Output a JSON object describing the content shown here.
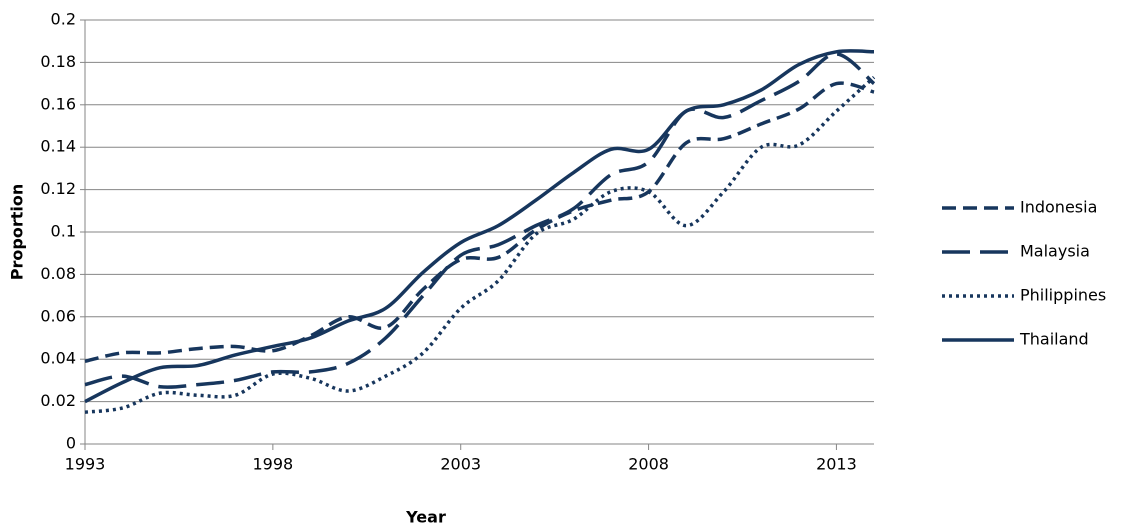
{
  "chart_data": {
    "type": "line",
    "x_label": "Year",
    "y_label": "Proportion",
    "x": [
      1993,
      1994,
      1995,
      1996,
      1997,
      1998,
      1999,
      2000,
      2001,
      2002,
      2003,
      2004,
      2005,
      2006,
      2007,
      2008,
      2009,
      2010,
      2011,
      2012,
      2013,
      2014
    ],
    "series": [
      {
        "name": "Indonesia",
        "color": "#17365d",
        "style": "dash",
        "values": [
          0.039,
          0.043,
          0.043,
          0.045,
          0.046,
          0.044,
          0.051,
          0.06,
          0.055,
          0.073,
          0.087,
          0.088,
          0.101,
          0.11,
          0.115,
          0.119,
          0.142,
          0.144,
          0.151,
          0.158,
          0.17,
          0.166
        ]
      },
      {
        "name": "Malaysia",
        "color": "#17365d",
        "style": "longdash",
        "values": [
          0.028,
          0.032,
          0.027,
          0.028,
          0.03,
          0.034,
          0.034,
          0.038,
          0.05,
          0.07,
          0.089,
          0.094,
          0.103,
          0.111,
          0.127,
          0.133,
          0.157,
          0.154,
          0.162,
          0.171,
          0.184,
          0.17
        ]
      },
      {
        "name": "Philippines",
        "color": "#17365d",
        "style": "dot",
        "values": [
          0.015,
          0.017,
          0.024,
          0.023,
          0.023,
          0.033,
          0.031,
          0.025,
          0.032,
          0.043,
          0.064,
          0.077,
          0.099,
          0.106,
          0.119,
          0.119,
          0.103,
          0.119,
          0.14,
          0.141,
          0.157,
          0.173
        ]
      },
      {
        "name": "Thailand",
        "color": "#17365d",
        "style": "solid",
        "values": [
          0.02,
          0.029,
          0.036,
          0.037,
          0.042,
          0.046,
          0.05,
          0.058,
          0.064,
          0.081,
          0.095,
          0.103,
          0.115,
          0.128,
          0.139,
          0.139,
          0.157,
          0.16,
          0.167,
          0.179,
          0.185,
          0.185
        ]
      }
    ],
    "xlim": [
      1993,
      2014
    ],
    "xticks": [
      1993,
      1998,
      2003,
      2008,
      2013
    ],
    "ylim": [
      0,
      0.2
    ],
    "yticks": [
      0,
      0.02,
      0.04,
      0.06,
      0.08,
      0.1,
      0.12,
      0.14,
      0.16,
      0.18,
      0.2
    ],
    "grid": true,
    "legend": "right"
  }
}
